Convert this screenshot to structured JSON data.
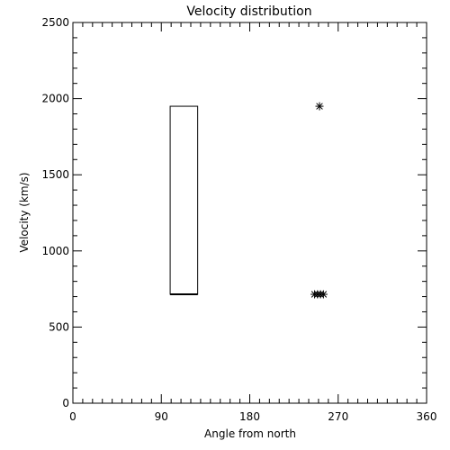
{
  "chart_data": {
    "type": "scatter",
    "title": "Velocity distribution",
    "xlabel": "Angle from north",
    "ylabel": "Velocity (km/s)",
    "xlim": [
      0,
      360
    ],
    "ylim": [
      0,
      2500
    ],
    "xticks": [
      0,
      90,
      180,
      270,
      360
    ],
    "yticks": [
      0,
      500,
      1000,
      1500,
      2000,
      2500
    ],
    "x_minor_step": 10,
    "y_minor_step": 100,
    "grid": false,
    "box": {
      "x0": 99,
      "x1": 127,
      "y0": 715,
      "y1": 1950
    },
    "points": [
      {
        "x": 251,
        "y": 1950
      },
      {
        "x": 246,
        "y": 715
      },
      {
        "x": 249,
        "y": 715
      },
      {
        "x": 252,
        "y": 715
      },
      {
        "x": 255,
        "y": 715
      }
    ],
    "marker": "asterisk",
    "color": "#000000"
  }
}
